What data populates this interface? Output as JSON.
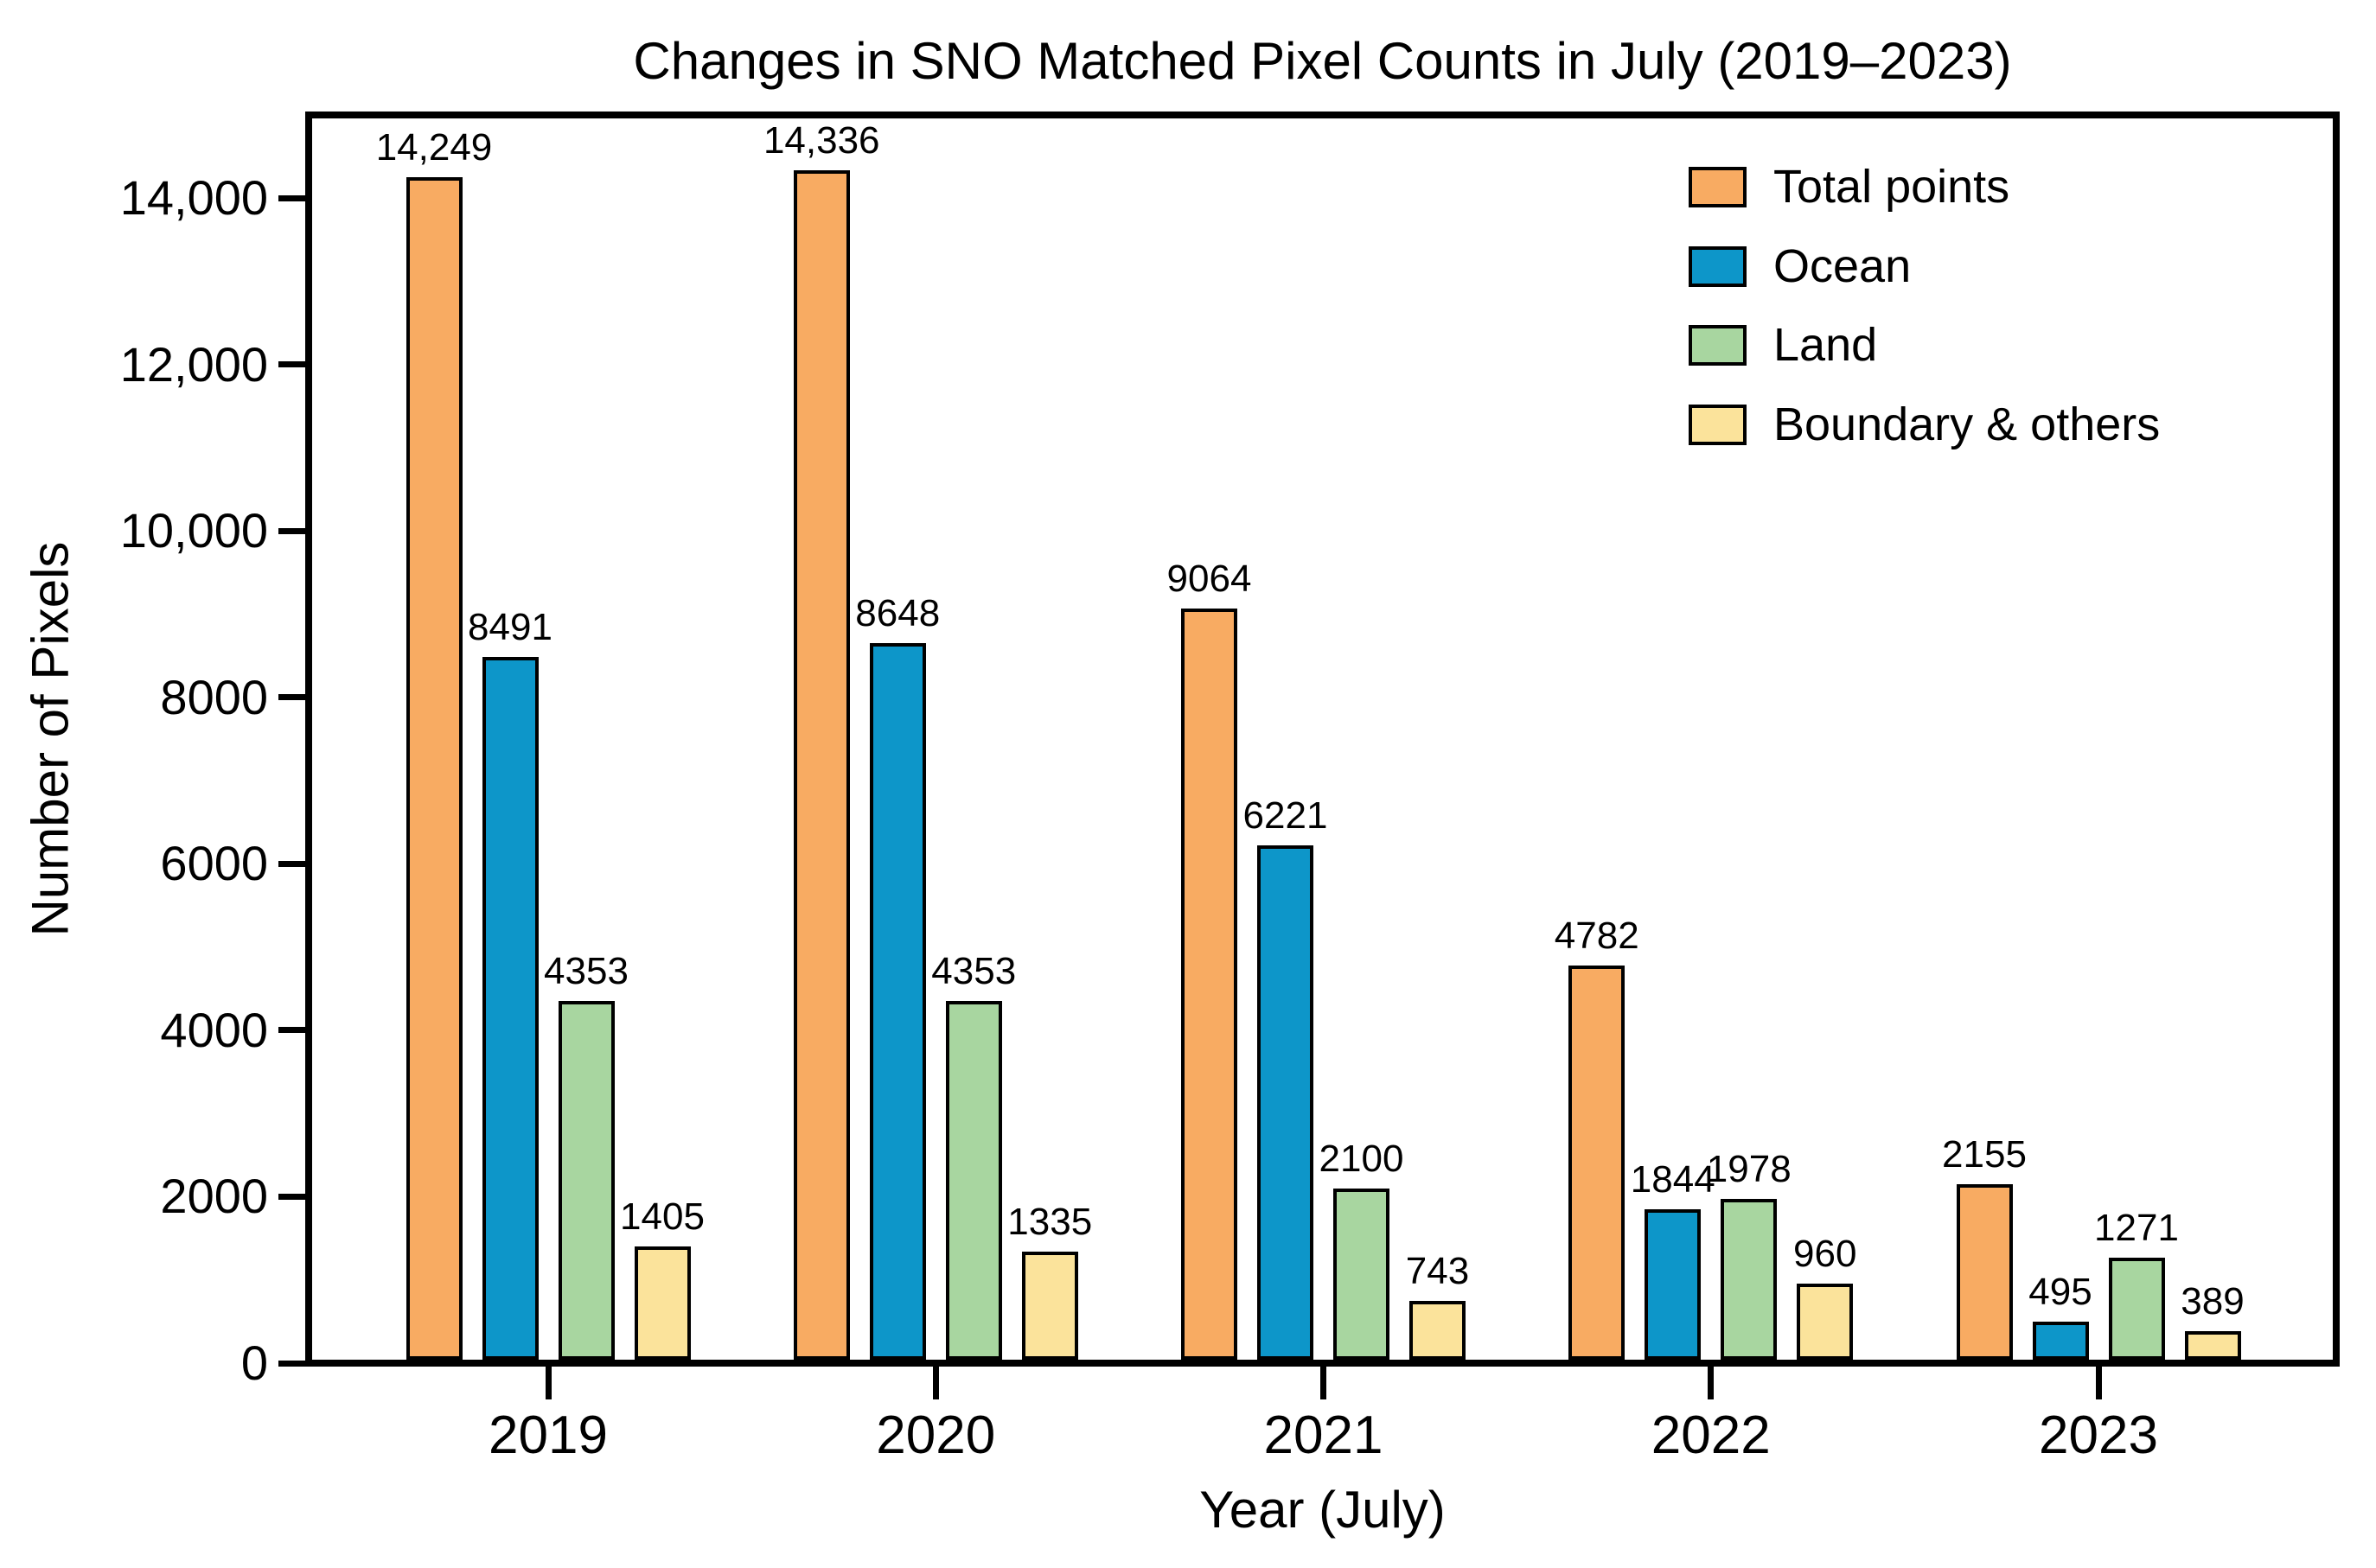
{
  "chart_data": {
    "type": "bar",
    "title": "Changes in SNO Matched Pixel Counts in July (2019–2023)",
    "xlabel": "Year (July)",
    "ylabel": "Number of Pixels",
    "categories": [
      "2019",
      "2020",
      "2021",
      "2022",
      "2023"
    ],
    "series": [
      {
        "name": "Total points",
        "color": "#F8AB62",
        "values": [
          14249,
          14336,
          9064,
          4782,
          2155
        ],
        "labels": [
          "14,249",
          "14,336",
          "9064",
          "4782",
          "2155"
        ]
      },
      {
        "name": "Ocean",
        "color": "#0D96C9",
        "values": [
          8491,
          8648,
          6221,
          1844,
          495
        ],
        "labels": [
          "8491",
          "8648",
          "6221",
          "1844",
          "495"
        ]
      },
      {
        "name": "Land",
        "color": "#A8D6A0",
        "values": [
          4353,
          4353,
          2100,
          1978,
          1271
        ],
        "labels": [
          "4353",
          "4353",
          "2100",
          "1978",
          "1271"
        ]
      },
      {
        "name": "Boundary & others",
        "color": "#FBE39B",
        "values": [
          1405,
          1335,
          743,
          960,
          389
        ],
        "labels": [
          "1405",
          "1335",
          "743",
          "960",
          "389"
        ]
      }
    ],
    "yticks": [
      {
        "value": 0,
        "label": "0"
      },
      {
        "value": 2000,
        "label": "2000"
      },
      {
        "value": 4000,
        "label": "4000"
      },
      {
        "value": 6000,
        "label": "6000"
      },
      {
        "value": 8000,
        "label": "8000"
      },
      {
        "value": 10000,
        "label": "10,000"
      },
      {
        "value": 12000,
        "label": "12,000"
      },
      {
        "value": 14000,
        "label": "14,000"
      }
    ],
    "ylim": [
      0,
      15000
    ],
    "grid": false,
    "legend_position": "upper right",
    "bar_edge_color": "#000000",
    "axis_color": "#000000"
  }
}
